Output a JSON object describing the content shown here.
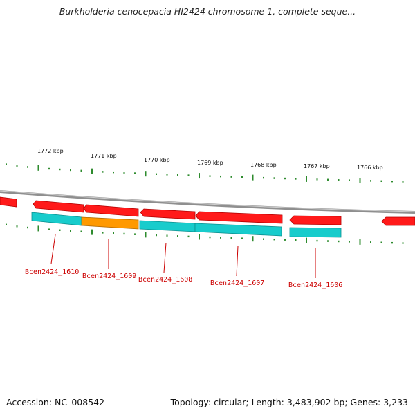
{
  "title": "Burkholderia cenocepacia HI2424 chromosome 1, complete seque...",
  "footer": {
    "accession": "Accession: NC_008542",
    "summary": "Topology: circular; Length: 3,483,902 bp; Genes: 3,233"
  },
  "colors": {
    "backbone": "#8f8f8f",
    "forward_gene": "#ff1a1a",
    "cds": "#18cccc",
    "cds_highlight": "#ff9900",
    "tick": "#2e8b2e",
    "label": "#cc0000"
  },
  "scale_labels": [
    "1772 kbp",
    "1771 kbp",
    "1770 kbp",
    "1769 kbp",
    "1768 kbp",
    "1767 kbp",
    "1766 kbp"
  ],
  "gene_labels": [
    "Bcen2424_1610",
    "Bcen2424_1609",
    "Bcen2424_1608",
    "Bcen2424_1607",
    "Bcen2424_1606"
  ]
}
